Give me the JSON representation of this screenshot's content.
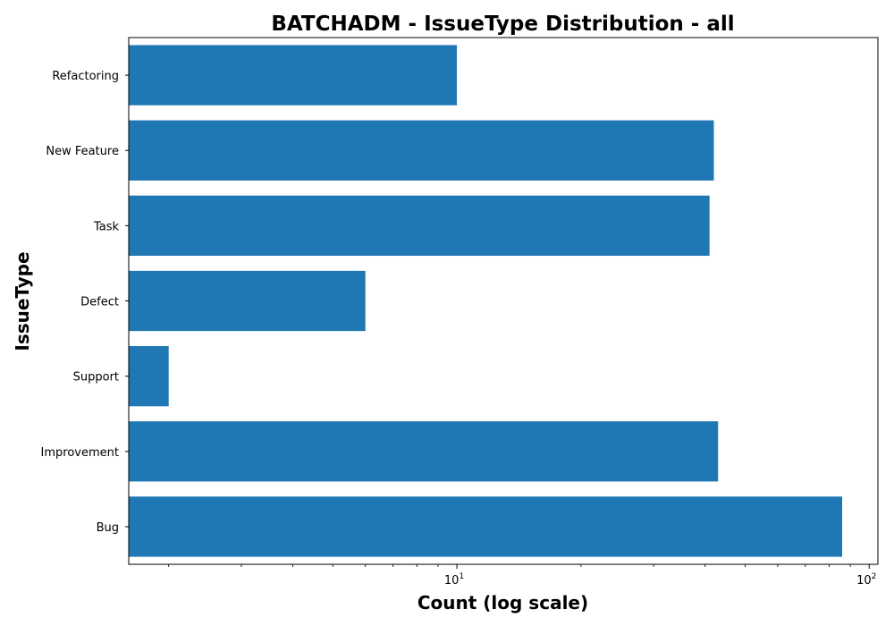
{
  "chart_data": {
    "type": "bar",
    "orientation": "horizontal",
    "title": "BATCHADM - IssueType Distribution - all",
    "xlabel": "Count (log scale)",
    "ylabel": "IssueType",
    "x_scale": "log",
    "xlim": [
      1.6,
      105
    ],
    "x_tick_labels": [
      {
        "value": 10,
        "base": "10",
        "exp": "1"
      },
      {
        "value": 100,
        "base": "10",
        "exp": "2"
      }
    ],
    "categories": [
      "Bug",
      "Improvement",
      "Support",
      "Defect",
      "Task",
      "New Feature",
      "Refactoring"
    ],
    "values": [
      86,
      43,
      2,
      6,
      41,
      42,
      10
    ],
    "grid": false,
    "legend": "none",
    "colors": {
      "bar": "#1f77b4",
      "axis": "#000000",
      "background": "#ffffff"
    }
  }
}
